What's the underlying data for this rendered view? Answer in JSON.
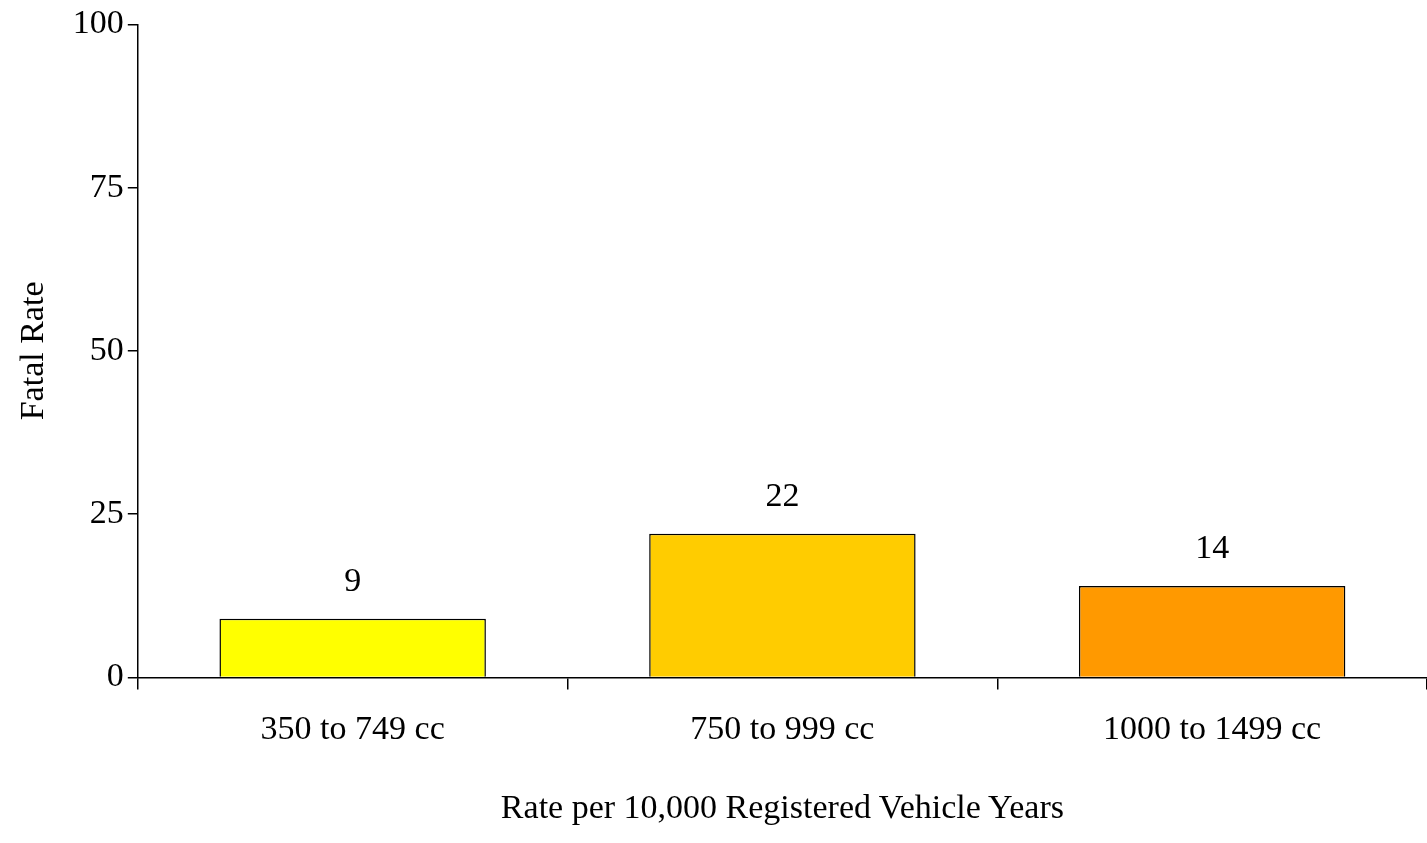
{
  "chart_data": {
    "type": "bar",
    "xlabel": "Rate per 10,000 Registered Vehicle Years",
    "ylabel": "Fatal Rate",
    "categories": [
      "350 to 749 cc",
      "750 to 999 cc",
      "1000 to 1499 cc"
    ],
    "values": [
      9,
      22,
      14
    ],
    "colors": [
      "#ffff00",
      "#ffcc00",
      "#ff9900"
    ],
    "ylim": [
      0,
      100
    ],
    "yticks": [
      0,
      25,
      50,
      75,
      100
    ],
    "grid": false,
    "legend": false,
    "data_labels": true
  }
}
